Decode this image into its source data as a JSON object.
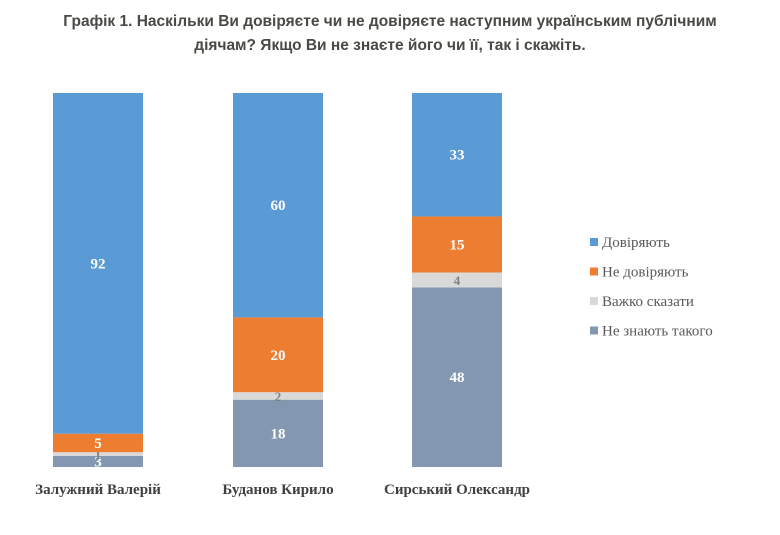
{
  "chart_data": {
    "type": "bar",
    "stacked": true,
    "title": "Графік 1. Наскільки Ви довіряєте чи не довіряєте наступним українським публічним діячам? Якщо Ви не знаєте його чи її, так і скажіть.",
    "title_lines": [
      "Графік 1. Наскільки Ви довіряєте чи не довіряєте наступним українським публічним",
      "діячам? Якщо Ви не знаєте його чи її, так і скажіть."
    ],
    "categories": [
      "Залужний Валерій",
      "Буданов Кирило",
      "Сирський Олександр"
    ],
    "series": [
      {
        "name": "Не знають такого",
        "color": "#8497b0",
        "values": [
          3,
          18,
          48
        ]
      },
      {
        "name": "Важко сказати",
        "color": "#d9d9d9",
        "values": [
          1,
          2,
          4
        ]
      },
      {
        "name": "Не довіряють",
        "color": "#ed7d31",
        "values": [
          5,
          20,
          15
        ]
      },
      {
        "name": "Довіряють",
        "color": "#5b9bd5",
        "values": [
          92,
          60,
          33
        ]
      }
    ],
    "legend_order": [
      "Довіряють",
      "Не довіряють",
      "Важко сказати",
      "Не знають такого"
    ],
    "legend_position": "right",
    "grid": false,
    "ylim": [
      0,
      100
    ]
  }
}
